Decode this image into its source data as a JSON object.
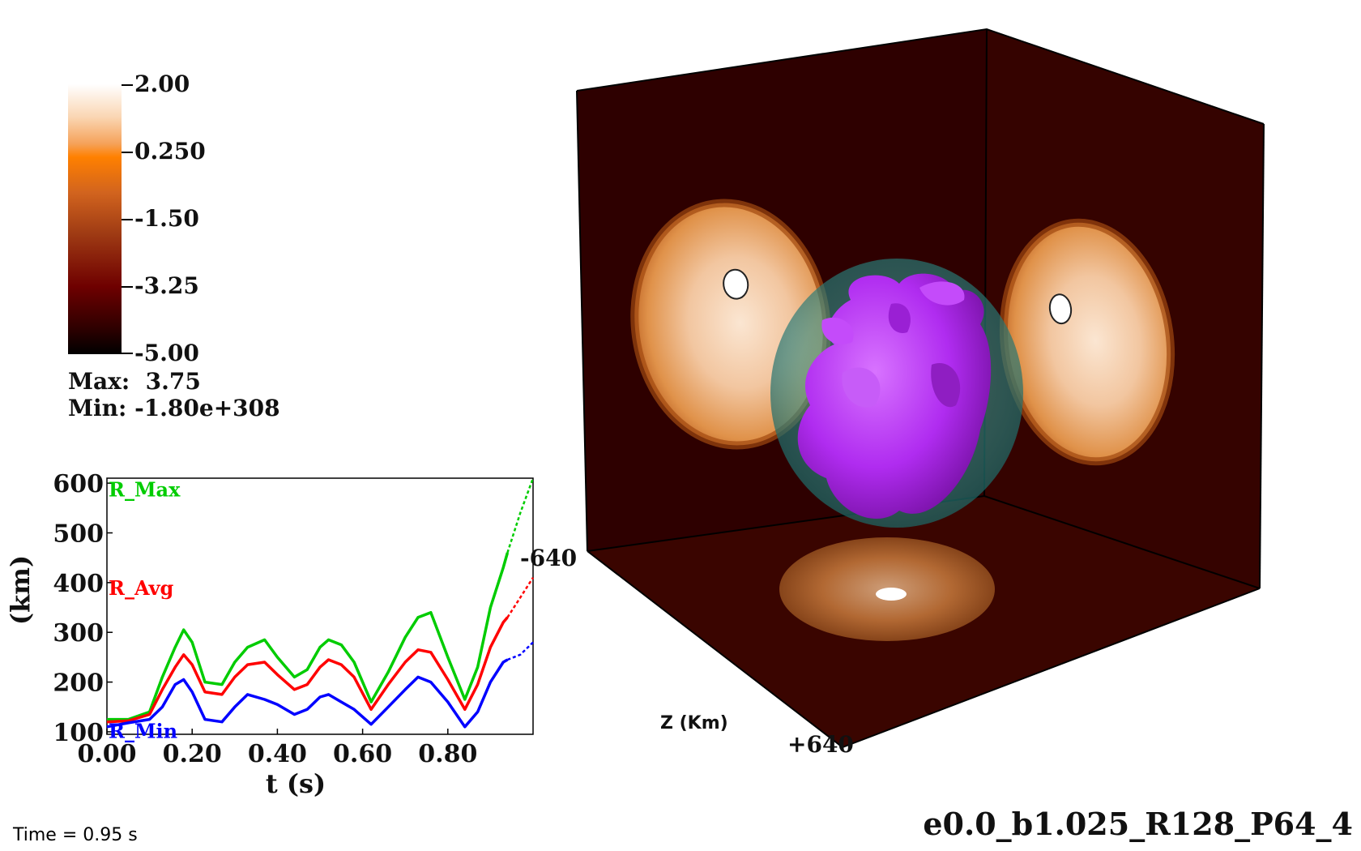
{
  "colorbar": {
    "ticks": [
      "2.00",
      "0.250",
      "-1.50",
      "-3.25",
      "-5.00"
    ],
    "max_label": "Max:  3.75",
    "min_label": "Min: -1.80e+308",
    "colors": {
      "top": "#ffffff",
      "mid": "#ff8000",
      "low": "#6e0000",
      "bottom": "#000000"
    }
  },
  "chart_data": {
    "type": "line",
    "xlabel": "t (s)",
    "ylabel": "(km)",
    "xlim": [
      0.0,
      1.0
    ],
    "ylim": [
      95,
      610
    ],
    "xticks": [
      "0.00",
      "0.20",
      "0.40",
      "0.60",
      "0.80"
    ],
    "yticks": [
      "100",
      "200",
      "300",
      "400",
      "500",
      "600"
    ],
    "series": [
      {
        "name": "R_Max",
        "color": "#00cc00",
        "x": [
          0.0,
          0.05,
          0.1,
          0.13,
          0.16,
          0.18,
          0.2,
          0.23,
          0.27,
          0.3,
          0.33,
          0.37,
          0.4,
          0.44,
          0.47,
          0.5,
          0.52,
          0.55,
          0.58,
          0.62,
          0.66,
          0.7,
          0.73,
          0.76,
          0.8,
          0.84,
          0.87,
          0.9,
          0.93,
          0.94
        ],
        "y": [
          125,
          125,
          140,
          210,
          270,
          305,
          280,
          200,
          195,
          240,
          270,
          285,
          250,
          210,
          225,
          270,
          285,
          275,
          240,
          160,
          220,
          290,
          330,
          340,
          250,
          165,
          230,
          350,
          430,
          460
        ]
      },
      {
        "name": "R_Avg",
        "color": "#ff0000",
        "x": [
          0.0,
          0.05,
          0.1,
          0.13,
          0.16,
          0.18,
          0.2,
          0.23,
          0.27,
          0.3,
          0.33,
          0.37,
          0.4,
          0.44,
          0.47,
          0.5,
          0.52,
          0.55,
          0.58,
          0.62,
          0.66,
          0.7,
          0.73,
          0.76,
          0.8,
          0.84,
          0.87,
          0.9,
          0.93,
          0.94
        ],
        "y": [
          120,
          122,
          135,
          185,
          230,
          255,
          235,
          180,
          175,
          210,
          235,
          240,
          215,
          185,
          195,
          230,
          245,
          235,
          210,
          145,
          195,
          240,
          265,
          260,
          205,
          145,
          195,
          270,
          320,
          330
        ]
      },
      {
        "name": "R_Min",
        "color": "#0000ff",
        "x": [
          0.0,
          0.05,
          0.1,
          0.13,
          0.16,
          0.18,
          0.2,
          0.23,
          0.27,
          0.3,
          0.33,
          0.37,
          0.4,
          0.44,
          0.47,
          0.5,
          0.52,
          0.55,
          0.58,
          0.62,
          0.66,
          0.7,
          0.73,
          0.76,
          0.8,
          0.84,
          0.87,
          0.9,
          0.93,
          0.94
        ],
        "y": [
          110,
          118,
          125,
          150,
          195,
          205,
          180,
          125,
          120,
          150,
          175,
          165,
          155,
          135,
          145,
          170,
          175,
          160,
          145,
          115,
          150,
          185,
          210,
          200,
          160,
          110,
          140,
          200,
          240,
          245
        ]
      }
    ],
    "extrapolated": [
      {
        "name": "R_Max",
        "x": [
          0.94,
          0.97,
          1.0
        ],
        "y": [
          460,
          540,
          610
        ]
      },
      {
        "name": "R_Avg",
        "x": [
          0.94,
          0.97,
          1.0
        ],
        "y": [
          330,
          370,
          410
        ]
      },
      {
        "name": "R_Min",
        "x": [
          0.94,
          0.97,
          1.0
        ],
        "y": [
          245,
          255,
          280
        ]
      }
    ]
  },
  "time_label": "Time = 0.95 s",
  "scene": {
    "axis_label_neg": "-640",
    "axis_label_pos": "+640",
    "axis_name": "Z (Km)",
    "run_name": "e0.0_b1.025_R128_P64_4",
    "colors": {
      "box": "#2e0000",
      "floor": "#3a0500",
      "shell": "#3aa6a0",
      "core": "#b02cf0",
      "slice": "#d97a2a"
    }
  }
}
